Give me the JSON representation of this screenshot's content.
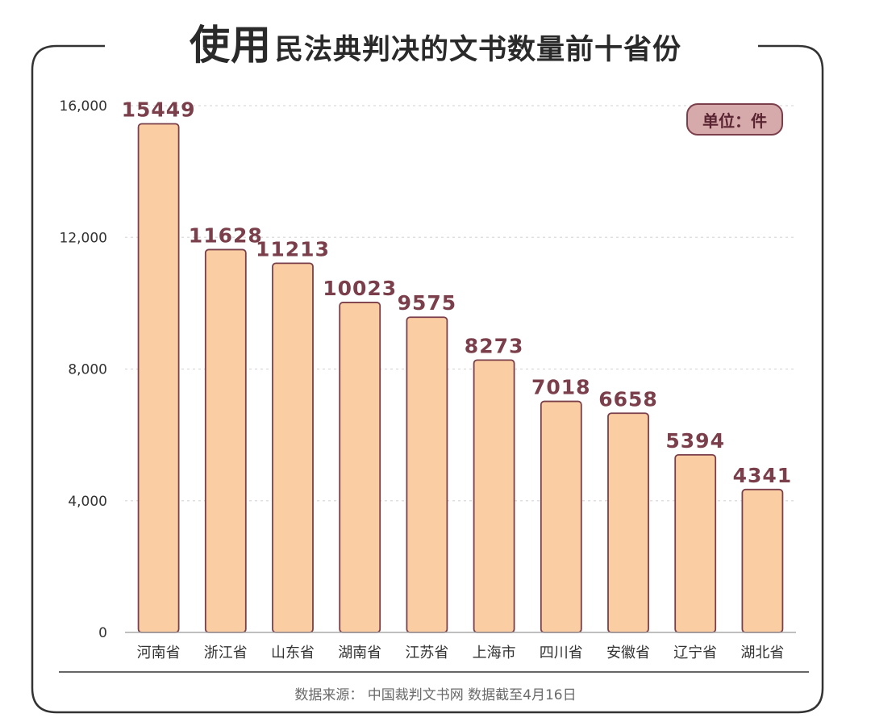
{
  "title": {
    "part1": "使用",
    "part2": "民法典",
    "part3": "判决的文书数量前十省份"
  },
  "unit_label": "单位：件",
  "source": "数据来源：  中国裁判文书网  数据截至4月16日",
  "colors": {
    "bar_fill": "#fbcda2",
    "bar_stroke": "#7a3f4a",
    "value_label": "#7a3f4a",
    "frame": "#333333",
    "grid": "#d9d9d9"
  },
  "chart_data": {
    "type": "bar",
    "categories": [
      "河南省",
      "浙江省",
      "山东省",
      "湖南省",
      "江苏省",
      "上海市",
      "四川省",
      "安徽省",
      "辽宁省",
      "湖北省"
    ],
    "values": [
      15449,
      11628,
      11213,
      10023,
      9575,
      8273,
      7018,
      6658,
      5394,
      4341
    ],
    "data_labels": [
      "15449",
      "11628",
      "11213",
      "10023",
      "9575",
      "8273",
      "7018",
      "6658",
      "5394",
      "4341"
    ],
    "y_ticks": [
      0,
      4000,
      8000,
      12000,
      16000
    ],
    "y_tick_labels": [
      "0",
      "4,000",
      "8,000",
      "12,000",
      "16,000"
    ],
    "ylim": [
      0,
      16000
    ],
    "grid": true,
    "xlabel": "",
    "ylabel": ""
  }
}
